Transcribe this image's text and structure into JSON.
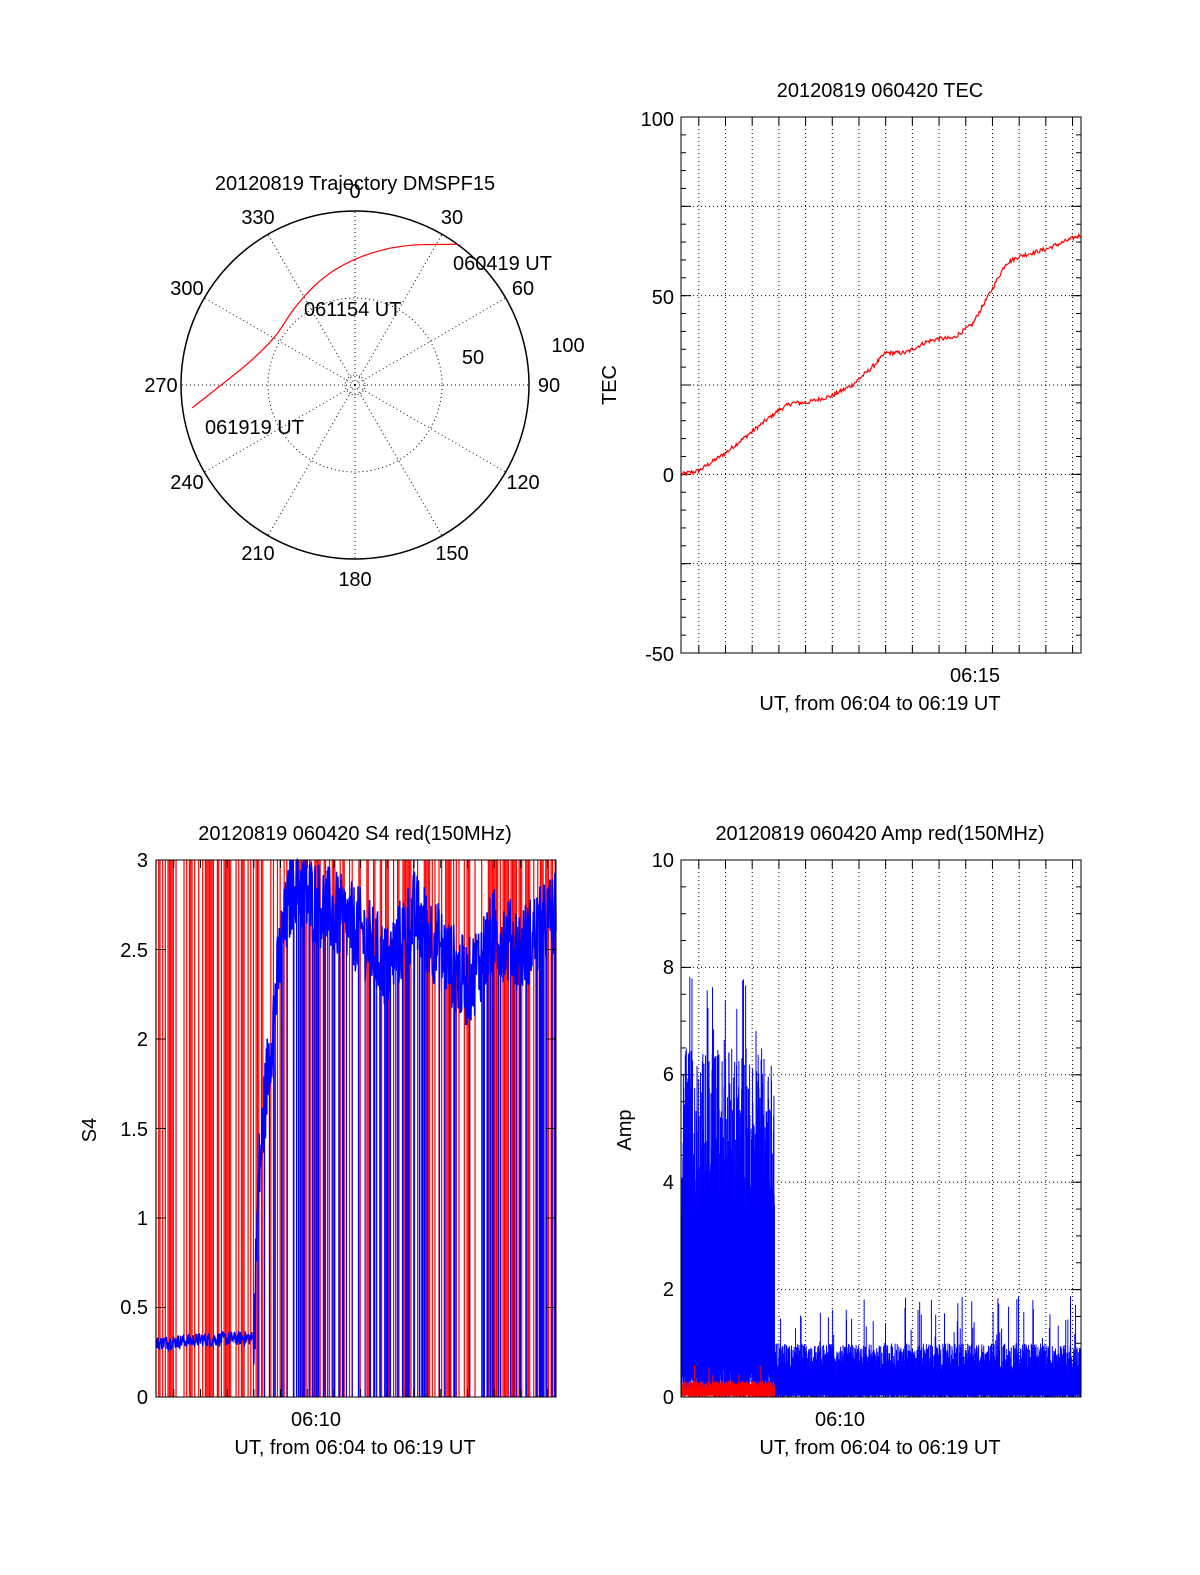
{
  "colors": {
    "red": "#ff0000",
    "blue": "#0000ff",
    "axes": "#000000",
    "grid": "#000000"
  },
  "chart_data": [
    {
      "type": "polar",
      "title": "20120819 Trajectory DMSPF15",
      "azimuth_ticks": [
        "0",
        "30",
        "60",
        "90",
        "120",
        "150",
        "180",
        "210",
        "240",
        "270",
        "300",
        "330"
      ],
      "radial_ticks": [
        "50",
        "100"
      ],
      "track": {
        "points": [
          {
            "az": 36,
            "el": 0
          },
          {
            "az": 15,
            "el": 15
          },
          {
            "az": 350,
            "el": 28
          },
          {
            "az": 324,
            "el": 38
          },
          {
            "az": 295,
            "el": 42
          },
          {
            "az": 262,
            "el": 5
          }
        ],
        "labels": [
          "060419 UT",
          "061154 UT",
          "061919 UT"
        ]
      },
      "grid": true
    },
    {
      "type": "line",
      "title": "20120819 060420 TEC",
      "xlabel": "UT, from 06:04 to 06:19 UT",
      "ylabel": "TEC",
      "xlim": [
        "06:04:20",
        "06:19:19"
      ],
      "ylim": [
        -50,
        100
      ],
      "x_tick_labels": [
        "06:15"
      ],
      "y_tick_labels": [
        "100",
        "50",
        "0",
        "-50"
      ],
      "grid": true,
      "series": [
        {
          "color": "#ff0000",
          "x": [
            "06:04:20",
            "06:05:00",
            "06:06:00",
            "06:07:00",
            "06:08:00",
            "06:08:30",
            "06:09:00",
            "06:10:00",
            "06:10:45",
            "06:11:30",
            "06:12:00",
            "06:12:45",
            "06:13:30",
            "06:14:00",
            "06:14:30",
            "06:15:15",
            "06:16:00",
            "06:16:30",
            "06:17:00",
            "06:18:00",
            "06:19:19"
          ],
          "y": [
            0,
            1,
            6,
            12,
            18,
            20,
            20,
            22,
            25,
            30,
            34,
            34,
            37,
            38,
            38,
            42,
            52,
            59,
            61,
            63,
            67
          ]
        }
      ]
    },
    {
      "type": "line",
      "title": "20120819 060420 S4 red(150MHz)",
      "xlabel": "UT, from 06:04 to 06:19 UT",
      "ylabel": "S4",
      "xlim": [
        "06:04:20",
        "06:19:19"
      ],
      "ylim": [
        0,
        3
      ],
      "x_tick_labels": [
        "06:10"
      ],
      "y_tick_labels": [
        "3",
        "2.5",
        "2",
        "1.5",
        "1",
        "0.5",
        "0"
      ],
      "grid": false,
      "series": [
        {
          "color": "#0000ff",
          "x": [
            "06:04:20",
            "06:06:00",
            "06:08:00",
            "06:08:10",
            "06:08:30",
            "06:09:00",
            "06:09:30",
            "06:10:00",
            "06:11:00",
            "06:12:00",
            "06:13:00",
            "06:14:00",
            "06:15:00",
            "06:16:00",
            "06:17:00",
            "06:18:00",
            "06:19:19"
          ],
          "y": [
            0.3,
            0.32,
            0.33,
            1.2,
            1.8,
            2.5,
            2.9,
            2.8,
            2.7,
            2.6,
            2.4,
            2.7,
            2.5,
            2.3,
            2.6,
            2.5,
            2.7
          ]
        }
      ],
      "note_style": "dense red vertical spikes from 0 to 3 throughout the time range"
    },
    {
      "type": "line",
      "title": "20120819 060420 Amp red(150MHz)",
      "xlabel": "UT, from 06:04 to 06:19 UT",
      "ylabel": "Amp",
      "xlim": [
        "06:04:20",
        "06:19:19"
      ],
      "ylim": [
        0,
        10
      ],
      "x_tick_labels": [
        "06:10"
      ],
      "y_tick_labels": [
        "10",
        "8",
        "6",
        "4",
        "2",
        "0"
      ],
      "grid": true,
      "series": [
        {
          "color": "#0000ff",
          "segments": [
            {
              "from": "06:04:20",
              "to": "06:07:50",
              "min": 0.5,
              "max": 6.5,
              "peak": 8.0
            },
            {
              "from": "06:07:50",
              "to": "06:19:19",
              "min": 0.05,
              "max": 1.0,
              "peak": 1.9
            }
          ]
        },
        {
          "color": "#ff0000",
          "segments": [
            {
              "from": "06:04:20",
              "to": "06:07:50",
              "min": 0.05,
              "max": 0.3,
              "peak": 0.6
            }
          ]
        }
      ]
    }
  ]
}
